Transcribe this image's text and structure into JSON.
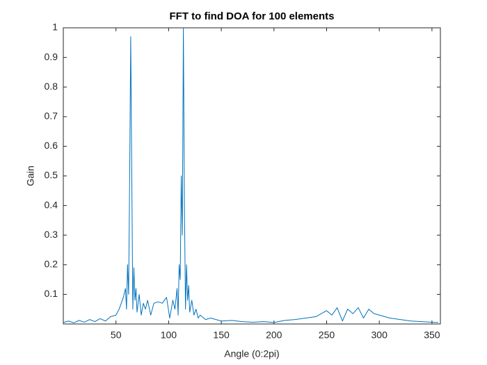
{
  "chart_data": {
    "type": "line",
    "title": "FFT to find DOA for 100 elements",
    "x_label": "Angle (0:2pi)",
    "y_label": "Gain",
    "x": [
      0,
      5,
      10,
      15,
      20,
      25,
      30,
      35,
      40,
      45,
      50,
      53,
      55,
      57,
      59,
      60,
      61,
      62,
      63,
      64,
      65,
      66,
      67,
      68,
      69,
      70,
      72,
      74,
      76,
      78,
      80,
      83,
      86,
      90,
      94,
      98,
      101,
      104,
      106,
      108,
      109,
      110,
      111,
      112,
      113,
      114,
      115,
      116,
      117,
      118,
      119,
      120,
      122,
      124,
      126,
      128,
      130,
      135,
      140,
      150,
      160,
      170,
      180,
      190,
      200,
      210,
      220,
      230,
      240,
      245,
      250,
      255,
      260,
      265,
      270,
      275,
      280,
      285,
      290,
      295,
      300,
      310,
      320,
      330,
      340,
      350,
      356
    ],
    "series": [
      {
        "color": "#0072bd",
        "values": [
          0.005,
          0.01,
          0.004,
          0.012,
          0.006,
          0.015,
          0.008,
          0.018,
          0.01,
          0.025,
          0.03,
          0.05,
          0.07,
          0.09,
          0.12,
          0.05,
          0.2,
          0.1,
          0.5,
          0.97,
          0.5,
          0.05,
          0.19,
          0.08,
          0.12,
          0.04,
          0.1,
          0.03,
          0.07,
          0.05,
          0.08,
          0.03,
          0.07,
          0.075,
          0.07,
          0.09,
          0.02,
          0.08,
          0.05,
          0.12,
          0.03,
          0.2,
          0.15,
          0.5,
          0.3,
          1.0,
          0.4,
          0.05,
          0.2,
          0.08,
          0.13,
          0.04,
          0.08,
          0.03,
          0.05,
          0.02,
          0.03,
          0.015,
          0.02,
          0.01,
          0.012,
          0.008,
          0.006,
          0.008,
          0.005,
          0.012,
          0.015,
          0.02,
          0.025,
          0.035,
          0.045,
          0.03,
          0.055,
          0.01,
          0.05,
          0.035,
          0.055,
          0.02,
          0.05,
          0.035,
          0.03,
          0.02,
          0.015,
          0.01,
          0.008,
          0.006,
          0.005
        ]
      }
    ],
    "xlim": [
      0,
      358
    ],
    "ylim": [
      0,
      1
    ],
    "xticks": [
      50,
      100,
      150,
      200,
      250,
      300,
      350
    ],
    "yticks": [
      0.1,
      0.2,
      0.3,
      0.4,
      0.5,
      0.6,
      0.7,
      0.8,
      0.9,
      1
    ],
    "grid": false
  }
}
